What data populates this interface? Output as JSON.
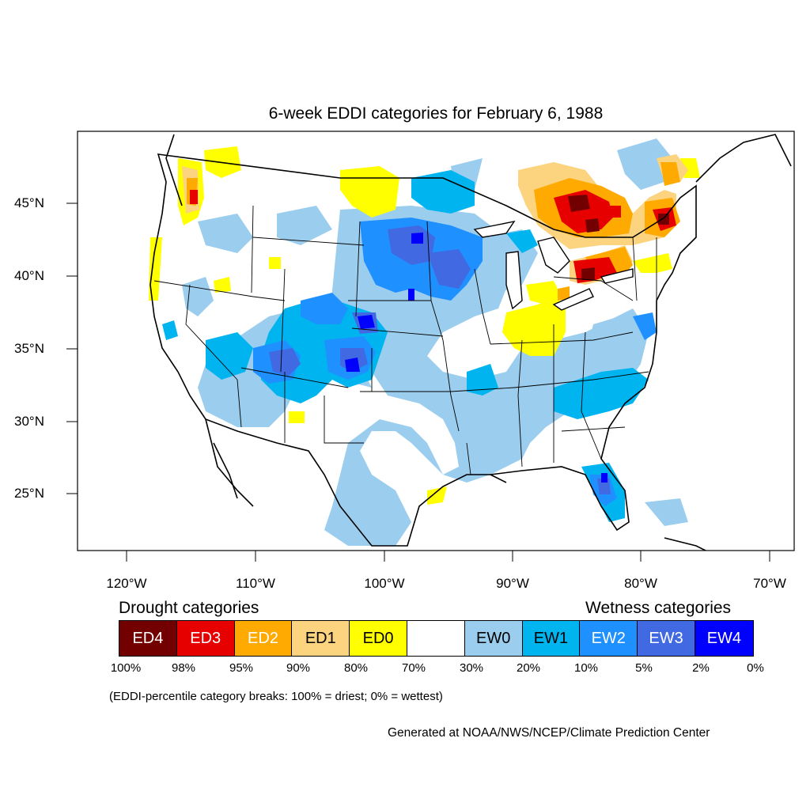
{
  "map": {
    "title": "6-week EDDI categories for February 6, 1988",
    "lat_labels": [
      "45°N",
      "40°N",
      "35°N",
      "30°N",
      "25°N"
    ],
    "lon_labels": [
      "120°W",
      "110°W",
      "100°W",
      "90°W",
      "80°W",
      "70°W"
    ]
  },
  "legend": {
    "drought_heading": "Drought categories",
    "wetness_heading": "Wetness categories",
    "categories": [
      {
        "label": "ED4",
        "color": "#730000",
        "text_color": "#ffffff"
      },
      {
        "label": "ED3",
        "color": "#e60000",
        "text_color": "#ffffff"
      },
      {
        "label": "ED2",
        "color": "#ffaa00",
        "text_color": "#ffffff"
      },
      {
        "label": "ED1",
        "color": "#fcd37f",
        "text_color": "#000000"
      },
      {
        "label": "ED0",
        "color": "#ffff00",
        "text_color": "#000000"
      },
      {
        "label": "",
        "color": "#ffffff",
        "text_color": "#000000"
      },
      {
        "label": "EW0",
        "color": "#9bcdee",
        "text_color": "#000000"
      },
      {
        "label": "EW1",
        "color": "#00b4f0",
        "text_color": "#000000"
      },
      {
        "label": "EW2",
        "color": "#1e90ff",
        "text_color": "#ffffff"
      },
      {
        "label": "EW3",
        "color": "#4169e1",
        "text_color": "#ffffff"
      },
      {
        "label": "EW4",
        "color": "#0000ff",
        "text_color": "#ffffff"
      }
    ],
    "breaks": [
      "100%",
      "98%",
      "95%",
      "90%",
      "80%",
      "70%",
      "30%",
      "20%",
      "10%",
      "5%",
      "2%",
      "0%"
    ],
    "note": "(EDDI-percentile category breaks: 100% = driest; 0% = wettest)"
  },
  "credit": "Generated at NOAA/NWS/NCEP/Climate Prediction Center"
}
